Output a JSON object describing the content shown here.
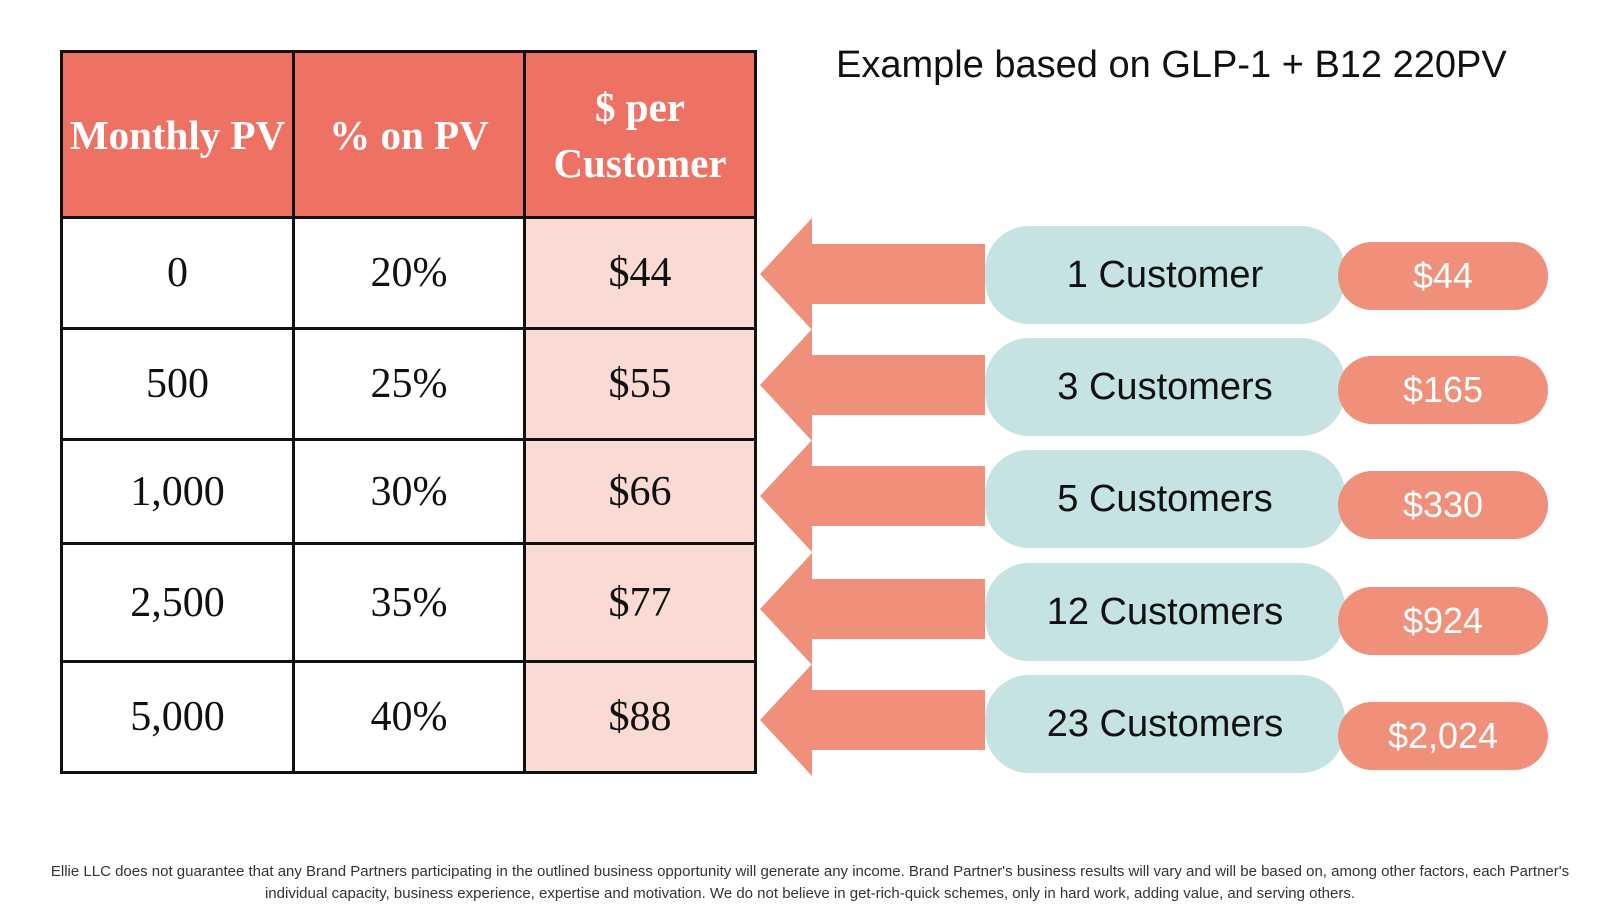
{
  "table": {
    "headers": [
      "Monthly PV",
      "% on PV",
      "$ per Customer"
    ],
    "rows": [
      {
        "monthly_pv": "0",
        "percent_on_pv": "20%",
        "per_customer": "$44"
      },
      {
        "monthly_pv": "500",
        "percent_on_pv": "25%",
        "per_customer": "$55"
      },
      {
        "monthly_pv": "1,000",
        "percent_on_pv": "30%",
        "per_customer": "$66"
      },
      {
        "monthly_pv": "2,500",
        "percent_on_pv": "35%",
        "per_customer": "$77"
      },
      {
        "monthly_pv": "5,000",
        "percent_on_pv": "40%",
        "per_customer": "$88"
      }
    ]
  },
  "example": {
    "title": "Example based on GLP-1 + B12 220PV",
    "items": [
      {
        "customers": "1 Customer",
        "earnings": "$44"
      },
      {
        "customers": "3 Customers",
        "earnings": "$165"
      },
      {
        "customers": "5 Customers",
        "earnings": "$330"
      },
      {
        "customers": "12 Customers",
        "earnings": "$924"
      },
      {
        "customers": "23 Customers",
        "earnings": "$2,024"
      }
    ]
  },
  "disclaimer": "Ellie LLC does not guarantee that any Brand Partners participating in the outlined business opportunity will generate any income. Brand Partner's business results will vary and will be based on, among other factors, each Partner's individual capacity, business experience, expertise and motivation. We do not believe in get-rich-quick schemes, only in hard work, adding value, and serving others.",
  "colors": {
    "header_red": "#ee7263",
    "pay_column_pink": "#f9dbd4",
    "arrow_salmon": "#f0907b",
    "customer_pill_teal": "#c6e3e3",
    "earnings_badge": "#f0907b"
  },
  "icons": [
    "arrow-left-icon"
  ]
}
